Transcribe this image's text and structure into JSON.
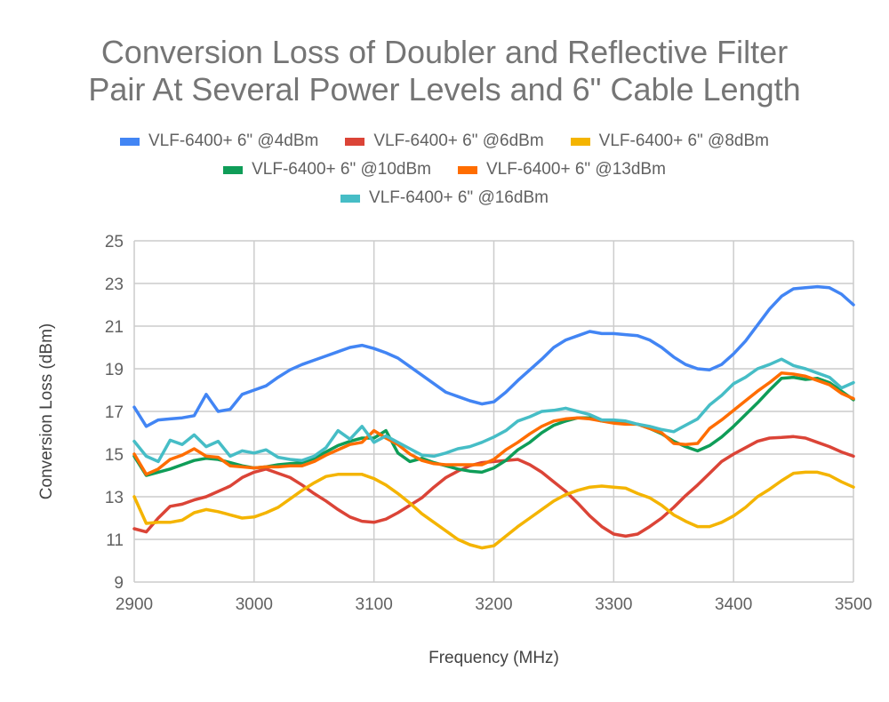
{
  "chart_data": {
    "type": "line",
    "title": "Conversion Loss of Doubler and Reflective Filter Pair At Several Power Levels and 6\" Cable Length",
    "title_lines": [
      "Conversion Loss of Doubler and Reflective Filter",
      "Pair At Several Power Levels and 6\" Cable Length"
    ],
    "xlabel": "Frequency (MHz)",
    "ylabel": "Conversion Loss (dBm)",
    "xlim": [
      2900,
      3500
    ],
    "ylim": [
      9,
      25
    ],
    "xticks": [
      2900,
      3000,
      3100,
      3200,
      3300,
      3400,
      3500
    ],
    "yticks": [
      9,
      11,
      13,
      15,
      17,
      19,
      21,
      23,
      25
    ],
    "grid": true,
    "legend_position": "top",
    "x": [
      2900,
      2910,
      2920,
      2930,
      2940,
      2950,
      2960,
      2970,
      2980,
      2990,
      3000,
      3010,
      3020,
      3030,
      3040,
      3050,
      3060,
      3070,
      3080,
      3090,
      3100,
      3110,
      3120,
      3130,
      3140,
      3150,
      3160,
      3170,
      3180,
      3190,
      3200,
      3210,
      3220,
      3230,
      3240,
      3250,
      3260,
      3270,
      3280,
      3290,
      3300,
      3310,
      3320,
      3330,
      3340,
      3350,
      3360,
      3370,
      3380,
      3390,
      3400,
      3410,
      3420,
      3430,
      3440,
      3450,
      3460,
      3470,
      3480,
      3490,
      3500
    ],
    "series": [
      {
        "name": "VLF-6400+ 6\" @4dBm",
        "color": "#4285f4",
        "values": [
          17.2,
          16.3,
          16.6,
          16.65,
          16.7,
          16.8,
          17.8,
          17.0,
          17.1,
          17.8,
          18.0,
          18.2,
          18.6,
          18.95,
          19.2,
          19.4,
          19.6,
          19.8,
          20.0,
          20.1,
          19.95,
          19.75,
          19.5,
          19.1,
          18.7,
          18.3,
          17.9,
          17.7,
          17.5,
          17.35,
          17.45,
          17.9,
          18.45,
          18.95,
          19.45,
          20.0,
          20.35,
          20.55,
          20.75,
          20.65,
          20.65,
          20.6,
          20.55,
          20.35,
          20.0,
          19.55,
          19.2,
          19.0,
          18.95,
          19.2,
          19.7,
          20.3,
          21.05,
          21.8,
          22.4,
          22.75,
          22.8,
          22.85,
          22.8,
          22.5,
          22.0
        ]
      },
      {
        "name": "VLF-6400+ 6\" @6dBm",
        "color": "#db4437",
        "values": [
          11.5,
          11.35,
          12.0,
          12.55,
          12.65,
          12.85,
          13.0,
          13.25,
          13.5,
          13.9,
          14.15,
          14.3,
          14.1,
          13.9,
          13.55,
          13.15,
          12.8,
          12.4,
          12.05,
          11.85,
          11.8,
          11.95,
          12.25,
          12.6,
          12.95,
          13.45,
          13.9,
          14.2,
          14.45,
          14.6,
          14.65,
          14.7,
          14.75,
          14.5,
          14.15,
          13.7,
          13.25,
          12.7,
          12.1,
          11.6,
          11.25,
          11.15,
          11.25,
          11.6,
          12.0,
          12.5,
          13.05,
          13.55,
          14.1,
          14.65,
          15.0,
          15.3,
          15.6,
          15.75,
          15.78,
          15.82,
          15.75,
          15.55,
          15.35,
          15.1,
          14.9
        ]
      },
      {
        "name": "VLF-6400+ 6\" @8dBm",
        "color": "#f4b400",
        "values": [
          13.0,
          11.75,
          11.8,
          11.8,
          11.9,
          12.25,
          12.4,
          12.3,
          12.15,
          12.0,
          12.05,
          12.25,
          12.5,
          12.9,
          13.3,
          13.65,
          13.95,
          14.05,
          14.05,
          14.05,
          13.85,
          13.55,
          13.15,
          12.7,
          12.2,
          11.8,
          11.4,
          11.0,
          10.75,
          10.6,
          10.7,
          11.15,
          11.6,
          12.0,
          12.4,
          12.8,
          13.1,
          13.3,
          13.45,
          13.5,
          13.45,
          13.4,
          13.15,
          12.95,
          12.6,
          12.15,
          11.85,
          11.6,
          11.6,
          11.8,
          12.1,
          12.5,
          13.0,
          13.35,
          13.75,
          14.1,
          14.15,
          14.15,
          14.0,
          13.7,
          13.45
        ]
      },
      {
        "name": "VLF-6400+ 6\" @10dBm",
        "color": "#0f9d58",
        "values": [
          14.9,
          14.0,
          14.15,
          14.3,
          14.5,
          14.7,
          14.8,
          14.75,
          14.6,
          14.45,
          14.35,
          14.4,
          14.5,
          14.55,
          14.6,
          14.8,
          15.1,
          15.4,
          15.6,
          15.75,
          15.75,
          16.1,
          15.05,
          14.65,
          14.8,
          14.6,
          14.45,
          14.3,
          14.2,
          14.15,
          14.35,
          14.7,
          15.2,
          15.55,
          16.0,
          16.35,
          16.55,
          16.7,
          16.7,
          16.55,
          16.5,
          16.45,
          16.4,
          16.2,
          15.95,
          15.6,
          15.35,
          15.15,
          15.4,
          15.8,
          16.3,
          16.85,
          17.4,
          18.0,
          18.55,
          18.6,
          18.5,
          18.55,
          18.35,
          17.95,
          17.55
        ]
      },
      {
        "name": "VLF-6400+ 6\" @13dBm",
        "color": "#ff6d00",
        "values": [
          15.0,
          14.05,
          14.3,
          14.75,
          14.95,
          15.25,
          14.9,
          14.85,
          14.45,
          14.4,
          14.35,
          14.4,
          14.4,
          14.45,
          14.45,
          14.65,
          14.95,
          15.2,
          15.45,
          15.55,
          16.1,
          15.75,
          15.45,
          15.0,
          14.7,
          14.55,
          14.5,
          14.5,
          14.5,
          14.5,
          14.75,
          15.2,
          15.55,
          15.95,
          16.3,
          16.55,
          16.65,
          16.7,
          16.65,
          16.55,
          16.45,
          16.4,
          16.4,
          16.2,
          16.0,
          15.5,
          15.45,
          15.5,
          16.2,
          16.6,
          17.05,
          17.5,
          17.95,
          18.35,
          18.8,
          18.75,
          18.65,
          18.45,
          18.25,
          17.85,
          17.6
        ]
      },
      {
        "name": "VLF-6400+ 6\" @16dBm",
        "color": "#46bdc6",
        "values": [
          15.6,
          14.9,
          14.65,
          15.65,
          15.45,
          15.9,
          15.35,
          15.6,
          14.9,
          15.15,
          15.05,
          15.2,
          14.85,
          14.75,
          14.7,
          14.9,
          15.3,
          16.1,
          15.7,
          16.3,
          15.55,
          15.85,
          15.55,
          15.25,
          14.95,
          14.9,
          15.05,
          15.25,
          15.35,
          15.55,
          15.8,
          16.1,
          16.55,
          16.75,
          17.0,
          17.05,
          17.15,
          17.0,
          16.85,
          16.6,
          16.6,
          16.55,
          16.4,
          16.3,
          16.15,
          16.05,
          16.35,
          16.65,
          17.3,
          17.75,
          18.3,
          18.6,
          19.0,
          19.2,
          19.45,
          19.15,
          19.0,
          18.8,
          18.6,
          18.1,
          18.35
        ]
      }
    ]
  }
}
